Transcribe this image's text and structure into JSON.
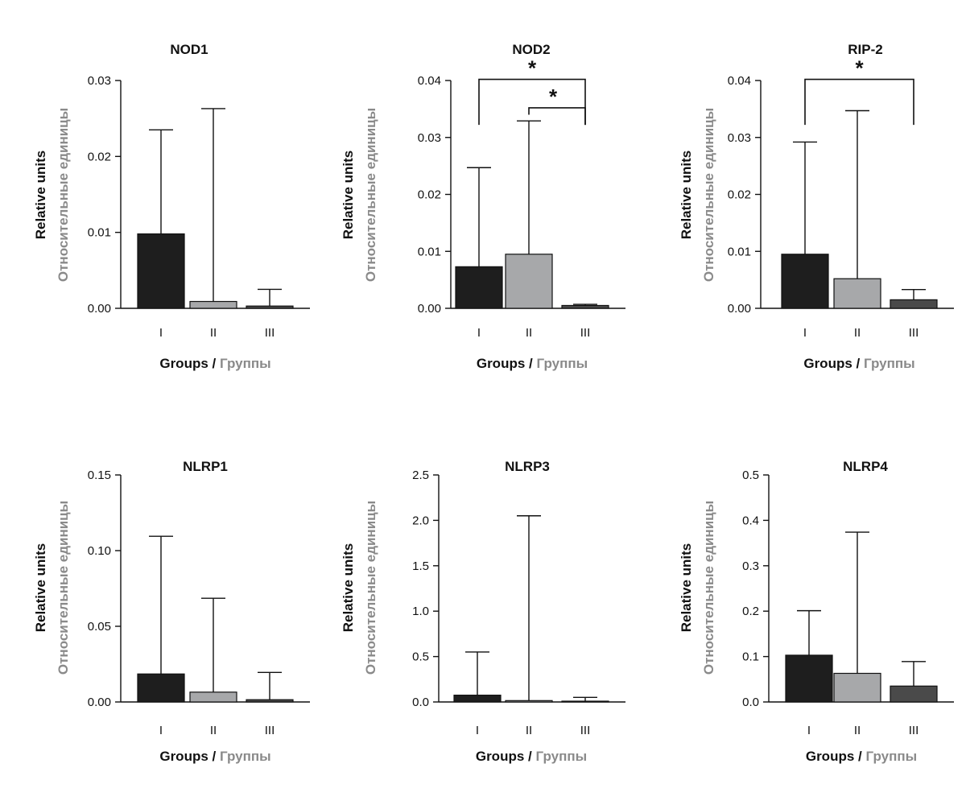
{
  "colors": {
    "text_primary": "#111111",
    "text_secondary": "#8a8a8a",
    "axis": "#111111"
  },
  "chart_data": [
    {
      "type": "bar",
      "title": "NOD1",
      "categories": [
        "I",
        "II",
        "III"
      ],
      "values": [
        0.0098,
        0.0009,
        0.0003
      ],
      "error_upper": [
        0.0235,
        0.0263,
        0.0025
      ],
      "bar_colors": [
        "#1e1e1e",
        "#a7a8aa",
        "#4a4a4a"
      ],
      "ylim": [
        0,
        0.03
      ],
      "yticks": [
        "0.00",
        "0.01",
        "0.02",
        "0.03"
      ],
      "ytick_values": [
        0,
        0.01,
        0.02,
        0.03
      ],
      "ylabel_en": "Relative units",
      "ylabel_ru": "Относительные единицы",
      "xlabel_en": "Groups",
      "xlabel_sep": " / ",
      "xlabel_ru": "Группы",
      "significance": []
    },
    {
      "type": "bar",
      "title": "NOD2",
      "categories": [
        "I",
        "II",
        "III"
      ],
      "values": [
        0.0073,
        0.0095,
        0.0005
      ],
      "error_upper": [
        0.0247,
        0.0329,
        0.0007
      ],
      "bar_colors": [
        "#1e1e1e",
        "#a7a8aa",
        "#4a4a4a"
      ],
      "ylim": [
        0,
        0.04
      ],
      "yticks": [
        "0.00",
        "0.01",
        "0.02",
        "0.03",
        "0.04"
      ],
      "ytick_values": [
        0,
        0.01,
        0.02,
        0.03,
        0.04
      ],
      "ylabel_en": "Relative units",
      "ylabel_ru": "Относительные единицы",
      "xlabel_en": "Groups",
      "xlabel_sep": " / ",
      "xlabel_ru": "Группы",
      "significance": [
        {
          "from": 0,
          "to": 2,
          "label": "*",
          "level": 0.0402,
          "drop": 0.0322
        },
        {
          "from": 1,
          "to": 2,
          "label": "*",
          "level": 0.0352,
          "drop": 0.0322
        }
      ]
    },
    {
      "type": "bar",
      "title": "RIP-2",
      "categories": [
        "I",
        "II",
        "III"
      ],
      "values": [
        0.0095,
        0.0052,
        0.0015
      ],
      "error_upper": [
        0.0292,
        0.0347,
        0.0033
      ],
      "bar_colors": [
        "#1e1e1e",
        "#a7a8aa",
        "#4a4a4a"
      ],
      "ylim": [
        0,
        0.04
      ],
      "yticks": [
        "0.00",
        "0.01",
        "0.02",
        "0.03",
        "0.04"
      ],
      "ytick_values": [
        0,
        0.01,
        0.02,
        0.03,
        0.04
      ],
      "ylabel_en": "Relative units",
      "ylabel_ru": "Относительные единицы",
      "xlabel_en": "Groups",
      "xlabel_sep": " / ",
      "xlabel_ru": "Группы",
      "significance": [
        {
          "from": 0,
          "to": 2,
          "label": "*",
          "level": 0.0402,
          "drop": 0.0322
        }
      ]
    },
    {
      "type": "bar",
      "title": "NLRP1",
      "categories": [
        "I",
        "II",
        "III"
      ],
      "values": [
        0.0185,
        0.0065,
        0.0015
      ],
      "error_upper": [
        0.1095,
        0.0685,
        0.0195
      ],
      "bar_colors": [
        "#1e1e1e",
        "#a7a8aa",
        "#4a4a4a"
      ],
      "ylim": [
        0,
        0.15
      ],
      "yticks": [
        "0.00",
        "0.05",
        "0.10",
        "0.15"
      ],
      "ytick_values": [
        0,
        0.05,
        0.1,
        0.15
      ],
      "ylabel_en": "Relative units",
      "ylabel_ru": "Относительные единицы",
      "xlabel_en": "Groups",
      "xlabel_sep": " / ",
      "xlabel_ru": "Группы",
      "significance": []
    },
    {
      "type": "bar",
      "title": "NLRP3",
      "categories": [
        "I",
        "II",
        "III"
      ],
      "values": [
        0.075,
        0.015,
        0.005
      ],
      "error_upper": [
        0.55,
        2.05,
        0.05
      ],
      "bar_colors": [
        "#1e1e1e",
        "#a7a8aa",
        "#4a4a4a"
      ],
      "ylim": [
        0,
        2.5
      ],
      "yticks": [
        "0.0",
        "0.5",
        "1.0",
        "1.5",
        "2.0",
        "2.5"
      ],
      "ytick_values": [
        0,
        0.5,
        1.0,
        1.5,
        2.0,
        2.5
      ],
      "ylabel_en": "Relative units",
      "ylabel_ru": "Относительные единицы",
      "xlabel_en": "Groups",
      "xlabel_sep": " / ",
      "xlabel_ru": "Группы",
      "significance": []
    },
    {
      "type": "bar",
      "title": "NLRP4",
      "categories": [
        "I",
        "II",
        "III"
      ],
      "values": [
        0.103,
        0.063,
        0.035
      ],
      "error_upper": [
        0.201,
        0.374,
        0.089
      ],
      "bar_colors": [
        "#1e1e1e",
        "#a7a8aa",
        "#4a4a4a"
      ],
      "ylim": [
        0,
        0.5
      ],
      "yticks": [
        "0.0",
        "0.1",
        "0.2",
        "0.3",
        "0.4",
        "0.5"
      ],
      "ytick_values": [
        0,
        0.1,
        0.2,
        0.3,
        0.4,
        0.5
      ],
      "ylabel_en": "Relative units",
      "ylabel_ru": "Относительные единицы",
      "xlabel_en": "Groups",
      "xlabel_sep": " / ",
      "xlabel_ru": "Группы",
      "significance": []
    }
  ]
}
